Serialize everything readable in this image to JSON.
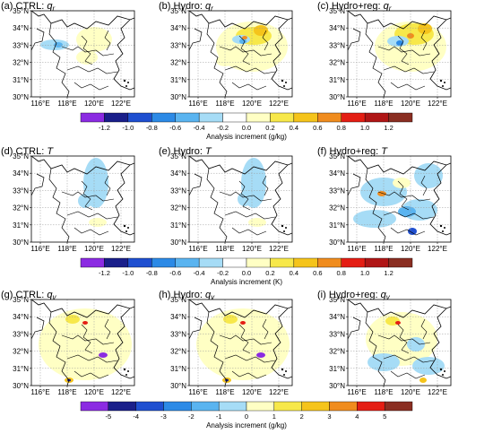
{
  "panels": [
    {
      "id": "a",
      "title_prefix": "(a) CTRL: ",
      "var": "q",
      "sub": "r"
    },
    {
      "id": "b",
      "title_prefix": "(b) Hydro: ",
      "var": "q",
      "sub": "r"
    },
    {
      "id": "c",
      "title_prefix": "(c) Hydro+reg: ",
      "var": "q",
      "sub": "r"
    },
    {
      "id": "d",
      "title_prefix": "(d) CTRL: ",
      "var": "T",
      "sub": ""
    },
    {
      "id": "e",
      "title_prefix": "(e) Hydro: ",
      "var": "T",
      "sub": ""
    },
    {
      "id": "f",
      "title_prefix": "(f) Hydro+reg: ",
      "var": "T",
      "sub": ""
    },
    {
      "id": "g",
      "title_prefix": "(g) CTRL: ",
      "var": "q",
      "sub": "v"
    },
    {
      "id": "h",
      "title_prefix": "(h) Hydro: ",
      "var": "q",
      "sub": "v"
    },
    {
      "id": "i",
      "title_prefix": "(i) Hydro+reg: ",
      "var": "q",
      "sub": "v"
    }
  ],
  "lat_labels": [
    "35°N",
    "34°N",
    "33°N",
    "32°N",
    "31°N",
    "30°N"
  ],
  "lon_labels": [
    "116°E",
    "118°E",
    "120°E",
    "122°E"
  ],
  "colorbars": [
    {
      "label": "Analysis increment (g/kg)",
      "ticks": [
        "-1.2",
        "-1.0",
        "-0.8",
        "-0.6",
        "-0.4",
        "-0.2",
        "0.0",
        "0.2",
        "0.4",
        "0.6",
        "0.8",
        "1.0",
        "1.2"
      ]
    },
    {
      "label": "Analysis increment (K)",
      "ticks": [
        "-1.2",
        "-1.0",
        "-0.8",
        "-0.6",
        "-0.4",
        "-0.2",
        "0.0",
        "0.2",
        "0.4",
        "0.6",
        "0.8",
        "1.0",
        "1.2"
      ]
    },
    {
      "label": "Analysis increment (g/kg)",
      "ticks": [
        "-5",
        "-4",
        "-3",
        "-2",
        "-1",
        "0",
        "1",
        "2",
        "3",
        "4",
        "5"
      ]
    }
  ],
  "colors": {
    "cb13": [
      "#8b2be2",
      "#1a1f8a",
      "#1f4fd0",
      "#2c8ae6",
      "#5ab4f0",
      "#a6dcf6",
      "#ffffff",
      "#ffffc4",
      "#f7e84a",
      "#f5c41b",
      "#f08c1e",
      "#e41e14",
      "#b01616",
      "#8a2e22"
    ],
    "cb11": [
      "#8b2be2",
      "#1a1f8a",
      "#1f4fd0",
      "#2c8ae6",
      "#5ab4f0",
      "#a6dcf6",
      "#ffffc4",
      "#f7e84a",
      "#f5c41b",
      "#f08c1e",
      "#e41e14",
      "#8a2e22"
    ]
  }
}
